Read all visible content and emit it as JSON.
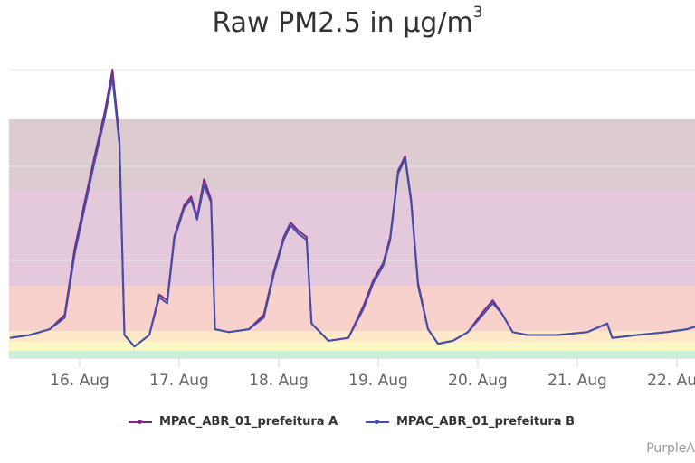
{
  "chart_data": {
    "type": "line",
    "title_prefix": "Raw PM2.5 in μg/m",
    "title_sup": "3",
    "x_tick_labels": [
      "16. Aug",
      "17. Aug",
      "18. Aug",
      "19. Aug",
      "20. Aug",
      "21. Aug",
      "22. Aug"
    ],
    "grid": true,
    "legend_position": "bottom",
    "band_colors": [
      "#cdeed7",
      "#fbf8c5",
      "#fde8c8",
      "#f8d0cc",
      "#e4c9dc",
      "#dccccf"
    ],
    "series": [
      {
        "name": "MPAC_ABR_01_prefeitura A",
        "color": "#7a2882",
        "points": [
          [
            15.3,
            0.07
          ],
          [
            15.5,
            0.08
          ],
          [
            15.7,
            0.1
          ],
          [
            15.85,
            0.15
          ],
          [
            15.95,
            0.38
          ],
          [
            16.05,
            0.54
          ],
          [
            16.15,
            0.7
          ],
          [
            16.25,
            0.85
          ],
          [
            16.33,
            1.0
          ],
          [
            16.4,
            0.76
          ],
          [
            16.45,
            0.08
          ],
          [
            16.55,
            0.04
          ],
          [
            16.7,
            0.08
          ],
          [
            16.8,
            0.22
          ],
          [
            16.88,
            0.2
          ],
          [
            16.95,
            0.42
          ],
          [
            17.05,
            0.53
          ],
          [
            17.12,
            0.56
          ],
          [
            17.18,
            0.49
          ],
          [
            17.25,
            0.62
          ],
          [
            17.32,
            0.55
          ],
          [
            17.36,
            0.1
          ],
          [
            17.5,
            0.09
          ],
          [
            17.7,
            0.1
          ],
          [
            17.85,
            0.15
          ],
          [
            17.95,
            0.3
          ],
          [
            18.05,
            0.42
          ],
          [
            18.12,
            0.47
          ],
          [
            18.2,
            0.44
          ],
          [
            18.28,
            0.42
          ],
          [
            18.33,
            0.12
          ],
          [
            18.5,
            0.06
          ],
          [
            18.7,
            0.07
          ],
          [
            18.85,
            0.18
          ],
          [
            18.95,
            0.27
          ],
          [
            19.05,
            0.33
          ],
          [
            19.12,
            0.42
          ],
          [
            19.2,
            0.65
          ],
          [
            19.27,
            0.7
          ],
          [
            19.33,
            0.55
          ],
          [
            19.4,
            0.26
          ],
          [
            19.5,
            0.1
          ],
          [
            19.6,
            0.05
          ],
          [
            19.75,
            0.06
          ],
          [
            19.9,
            0.09
          ],
          [
            20.05,
            0.16
          ],
          [
            20.15,
            0.2
          ],
          [
            20.25,
            0.15
          ],
          [
            20.35,
            0.09
          ],
          [
            20.5,
            0.08
          ],
          [
            20.8,
            0.08
          ],
          [
            21.1,
            0.09
          ],
          [
            21.3,
            0.12
          ],
          [
            21.35,
            0.07
          ],
          [
            21.6,
            0.08
          ],
          [
            21.9,
            0.09
          ],
          [
            22.1,
            0.1
          ],
          [
            22.3,
            0.12
          ]
        ]
      },
      {
        "name": "MPAC_ABR_01_prefeitura B",
        "color": "#434ea6",
        "points": [
          [
            15.3,
            0.07
          ],
          [
            15.5,
            0.08
          ],
          [
            15.7,
            0.1
          ],
          [
            15.85,
            0.14
          ],
          [
            15.95,
            0.36
          ],
          [
            16.05,
            0.52
          ],
          [
            16.15,
            0.68
          ],
          [
            16.25,
            0.83
          ],
          [
            16.33,
            0.97
          ],
          [
            16.4,
            0.74
          ],
          [
            16.45,
            0.08
          ],
          [
            16.55,
            0.04
          ],
          [
            16.7,
            0.08
          ],
          [
            16.8,
            0.21
          ],
          [
            16.88,
            0.19
          ],
          [
            16.95,
            0.41
          ],
          [
            17.05,
            0.52
          ],
          [
            17.12,
            0.55
          ],
          [
            17.18,
            0.48
          ],
          [
            17.25,
            0.6
          ],
          [
            17.32,
            0.54
          ],
          [
            17.36,
            0.1
          ],
          [
            17.5,
            0.09
          ],
          [
            17.7,
            0.1
          ],
          [
            17.85,
            0.14
          ],
          [
            17.95,
            0.29
          ],
          [
            18.05,
            0.41
          ],
          [
            18.12,
            0.46
          ],
          [
            18.2,
            0.43
          ],
          [
            18.28,
            0.41
          ],
          [
            18.33,
            0.12
          ],
          [
            18.5,
            0.06
          ],
          [
            18.7,
            0.07
          ],
          [
            18.85,
            0.17
          ],
          [
            18.95,
            0.26
          ],
          [
            19.05,
            0.32
          ],
          [
            19.12,
            0.41
          ],
          [
            19.2,
            0.64
          ],
          [
            19.27,
            0.69
          ],
          [
            19.33,
            0.54
          ],
          [
            19.4,
            0.25
          ],
          [
            19.5,
            0.1
          ],
          [
            19.6,
            0.05
          ],
          [
            19.75,
            0.06
          ],
          [
            19.9,
            0.09
          ],
          [
            20.05,
            0.15
          ],
          [
            20.15,
            0.19
          ],
          [
            20.25,
            0.15
          ],
          [
            20.35,
            0.09
          ],
          [
            20.5,
            0.08
          ],
          [
            20.8,
            0.08
          ],
          [
            21.1,
            0.09
          ],
          [
            21.3,
            0.12
          ],
          [
            21.35,
            0.07
          ],
          [
            21.6,
            0.08
          ],
          [
            21.9,
            0.09
          ],
          [
            22.1,
            0.1
          ],
          [
            22.3,
            0.12
          ]
        ]
      }
    ]
  },
  "credits": "PurpleA"
}
